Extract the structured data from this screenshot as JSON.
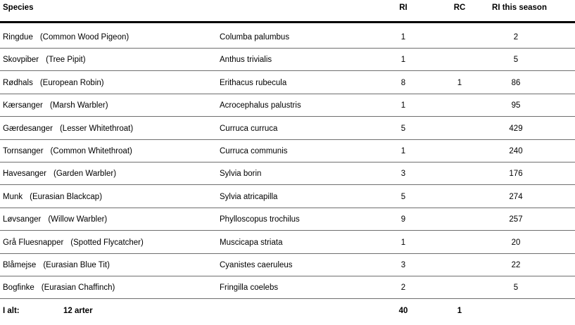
{
  "header": {
    "species": "Species",
    "ri": "RI",
    "rc": "RC",
    "ri_season": "RI this season"
  },
  "rows": [
    {
      "danish": "Ringdue",
      "english": "(Common Wood Pigeon)",
      "scientific": "Columba palumbus",
      "ri": "1",
      "rc": "",
      "season": "2"
    },
    {
      "danish": "Skovpiber",
      "english": "(Tree Pipit)",
      "scientific": "Anthus trivialis",
      "ri": "1",
      "rc": "",
      "season": "5"
    },
    {
      "danish": "Rødhals",
      "english": "(European Robin)",
      "scientific": "Erithacus rubecula",
      "ri": "8",
      "rc": "1",
      "season": "86"
    },
    {
      "danish": "Kærsanger",
      "english": "(Marsh Warbler)",
      "scientific": "Acrocephalus palustris",
      "ri": "1",
      "rc": "",
      "season": "95"
    },
    {
      "danish": "Gærdesanger",
      "english": "(Lesser Whitethroat)",
      "scientific": "Curruca curruca",
      "ri": "5",
      "rc": "",
      "season": "429"
    },
    {
      "danish": "Tornsanger",
      "english": "(Common Whitethroat)",
      "scientific": "Curruca communis",
      "ri": "1",
      "rc": "",
      "season": "240"
    },
    {
      "danish": "Havesanger",
      "english": "(Garden Warbler)",
      "scientific": "Sylvia borin",
      "ri": "3",
      "rc": "",
      "season": "176"
    },
    {
      "danish": "Munk",
      "english": "(Eurasian Blackcap)",
      "scientific": "Sylvia atricapilla",
      "ri": "5",
      "rc": "",
      "season": "274"
    },
    {
      "danish": "Løvsanger",
      "english": "(Willow Warbler)",
      "scientific": "Phylloscopus trochilus",
      "ri": "9",
      "rc": "",
      "season": "257"
    },
    {
      "danish": "Grå Fluesnapper",
      "english": "(Spotted Flycatcher)",
      "scientific": "Muscicapa striata",
      "ri": "1",
      "rc": "",
      "season": "20"
    },
    {
      "danish": "Blåmejse",
      "english": "(Eurasian Blue Tit)",
      "scientific": "Cyanistes caeruleus",
      "ri": "3",
      "rc": "",
      "season": "22"
    },
    {
      "danish": "Bogfinke",
      "english": "(Eurasian Chaffinch)",
      "scientific": "Fringilla coelebs",
      "ri": "2",
      "rc": "",
      "season": "5"
    }
  ],
  "totals": {
    "label": "I alt:",
    "count": "12 arter",
    "ri": "40",
    "rc": "1"
  }
}
